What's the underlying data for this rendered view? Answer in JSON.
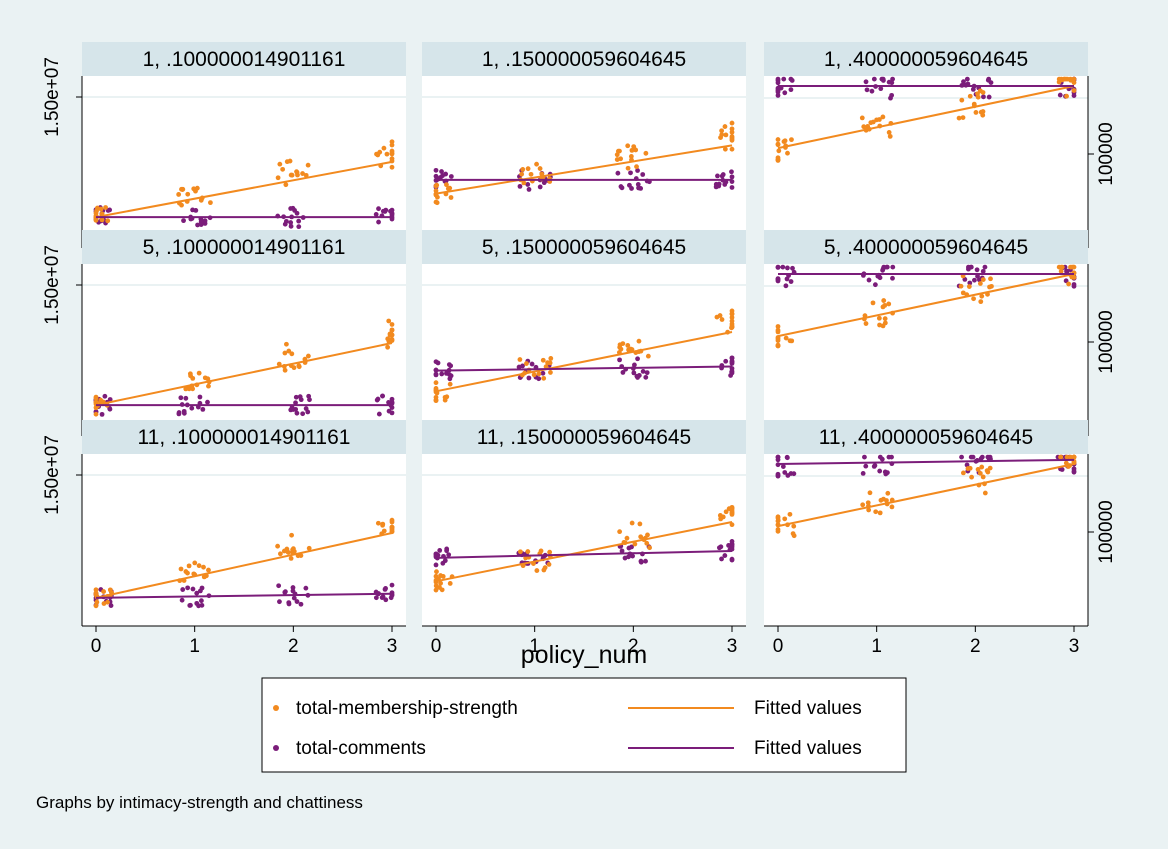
{
  "colors": {
    "membership": "#f28a1f",
    "comments": "#7b1d7a",
    "background": "#eaf2f3",
    "panel_bg": "#ffffff",
    "strip_bg": "#d6e5ea",
    "gridline": "#eaf2f3"
  },
  "chart_data": {
    "type": "scatter",
    "xlabel": "policy_num",
    "x_ticks": [
      "0",
      "1",
      "2",
      "3"
    ],
    "xlim": [
      0,
      3
    ],
    "left_axis_tick_label": "1.50e+07",
    "right_axis_tick_label": "100000",
    "note": "Graphs by intimacy-strength and chattiness",
    "legend": {
      "items": [
        {
          "label": "total-membership-strength",
          "marker": "dot",
          "color_key": "membership"
        },
        {
          "label": "Fitted values",
          "marker": "line",
          "color_key": "membership"
        },
        {
          "label": "total-comments",
          "marker": "dot",
          "color_key": "comments"
        },
        {
          "label": "Fitted values",
          "marker": "line",
          "color_key": "comments"
        }
      ]
    },
    "panels": [
      {
        "title": "1, .100000014901161",
        "show_left_axis": true,
        "show_right_axis": false,
        "show_x_axis": false,
        "membership_fit": [
          0.05,
          0.45
        ],
        "comments_fit": [
          0.05,
          0.05
        ]
      },
      {
        "title": "1, .150000059604645",
        "show_left_axis": false,
        "show_right_axis": false,
        "show_x_axis": false,
        "membership_fit": [
          0.22,
          0.57
        ],
        "comments_fit": [
          0.32,
          0.32
        ]
      },
      {
        "title": "1, .400000059604645",
        "show_left_axis": false,
        "show_right_axis": true,
        "show_x_axis": false,
        "membership_fit": [
          0.55,
          1.0
        ],
        "comments_fit": [
          1.0,
          1.0
        ]
      },
      {
        "title": "5, .100000014901161",
        "show_left_axis": true,
        "show_right_axis": false,
        "show_x_axis": false,
        "membership_fit": [
          0.05,
          0.5
        ],
        "comments_fit": [
          0.05,
          0.05
        ]
      },
      {
        "title": "5, .150000059604645",
        "show_left_axis": false,
        "show_right_axis": false,
        "show_x_axis": false,
        "membership_fit": [
          0.15,
          0.58
        ],
        "comments_fit": [
          0.3,
          0.33
        ]
      },
      {
        "title": "5, .400000059604645",
        "show_left_axis": false,
        "show_right_axis": true,
        "show_x_axis": false,
        "membership_fit": [
          0.55,
          1.0
        ],
        "comments_fit": [
          1.0,
          1.0
        ]
      },
      {
        "title": "11, .100000014901161",
        "show_left_axis": true,
        "show_right_axis": false,
        "show_x_axis": true,
        "membership_fit": [
          0.03,
          0.5
        ],
        "comments_fit": [
          0.03,
          0.06
        ]
      },
      {
        "title": "11, .150000059604645",
        "show_left_axis": false,
        "show_right_axis": false,
        "show_x_axis": true,
        "membership_fit": [
          0.15,
          0.58
        ],
        "comments_fit": [
          0.32,
          0.37
        ]
      },
      {
        "title": "11, .400000059604645",
        "show_left_axis": false,
        "show_right_axis": true,
        "show_x_axis": true,
        "membership_fit": [
          0.55,
          1.0
        ],
        "comments_fit": [
          1.0,
          1.03
        ]
      }
    ]
  }
}
